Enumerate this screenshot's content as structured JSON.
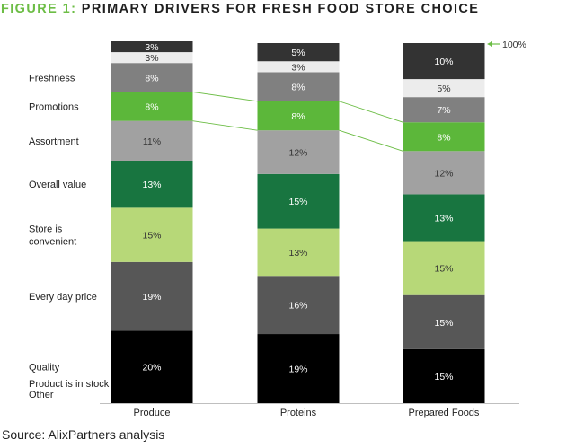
{
  "header": {
    "figure_label": "FIGURE 1:",
    "title": "PRIMARY DRIVERS FOR FRESH FOOD STORE CHOICE"
  },
  "source": "Source: AlixPartners analysis",
  "chart_data": {
    "type": "bar",
    "stacked": true,
    "categories": [
      "Produce",
      "Proteins",
      "Prepared Foods"
    ],
    "series": [
      {
        "name": "Quality",
        "values": [
          20,
          19,
          15
        ],
        "color": "#000000"
      },
      {
        "name": "Every day price",
        "values": [
          19,
          16,
          15
        ],
        "color": "#575757"
      },
      {
        "name": "Store is convenient",
        "values": [
          15,
          13,
          15
        ],
        "color": "#b7d878"
      },
      {
        "name": "Overall value",
        "values": [
          13,
          15,
          13
        ],
        "color": "#187540"
      },
      {
        "name": "Assortment",
        "values": [
          11,
          12,
          12
        ],
        "color": "#a1a1a1"
      },
      {
        "name": "Promotions",
        "values": [
          8,
          8,
          8
        ],
        "color": "#5cb73a"
      },
      {
        "name": "Freshness",
        "values": [
          8,
          8,
          7
        ],
        "color": "#808080"
      },
      {
        "name": "Product is in stock",
        "values": [
          3,
          3,
          5
        ],
        "color": "#ececec"
      },
      {
        "name": "Other",
        "values": [
          3,
          5,
          10
        ],
        "color": "#333333"
      }
    ],
    "label_colors": {
      "dark": "#ffffff",
      "light": "#333333"
    },
    "annotation": {
      "text": "100%",
      "color": "#6cbd45"
    },
    "highlight_series": "Promotions",
    "connector_color": "#6cbd45",
    "legend": "left",
    "grid": false,
    "ylim": [
      0,
      100
    ]
  }
}
